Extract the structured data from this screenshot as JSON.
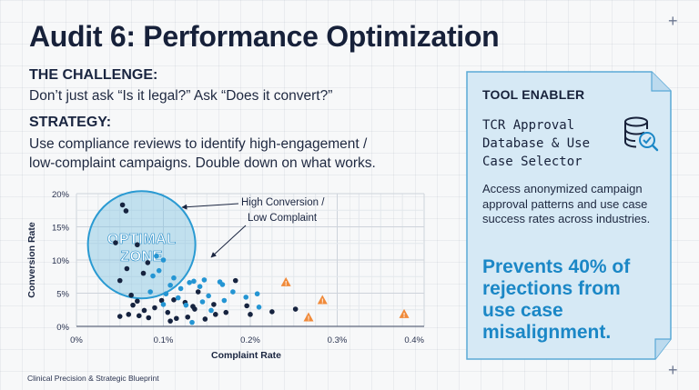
{
  "title": "Audit 6: Performance Optimization",
  "challenge": {
    "heading": "THE CHALLENGE:",
    "text": "Don’t just ask “Is it legal?” Ask “Does it convert?”"
  },
  "strategy": {
    "heading": "STRATEGY:",
    "line1": "Use compliance reviews to identify high-engagement /",
    "line2": "low-complaint campaigns. Double down on what works."
  },
  "tool": {
    "heading": "TOOL ENABLER",
    "name_line1": "TCR Approval",
    "name_line2": "Database & Use",
    "name_line3": "Case Selector",
    "icon": "database-check-icon",
    "desc": "Access anonymized campaign approval patterns and use case success rates across industries.",
    "big_line1": "Prevents 40% of",
    "big_line2": "rejections from",
    "big_line3": "use case",
    "big_line4": "misalignment."
  },
  "footer": "Clinical Precision & Strategic Blueprint",
  "colors": {
    "navy": "#16233f",
    "accent_blue": "#1b87c6",
    "panel_fill": "#d6e9f5",
    "panel_stroke": "#5aa9d6",
    "warning_orange": "#f08a3a"
  },
  "chart_data": {
    "type": "scatter",
    "xlabel": "Complaint Rate",
    "ylabel": "Conversion Rate",
    "xlim": [
      0,
      0.4
    ],
    "ylim": [
      0,
      20
    ],
    "x_ticks": [
      "0%",
      "0.1%",
      "0.2%",
      "0.3%",
      "0.4%"
    ],
    "y_ticks": [
      "0%",
      "5%",
      "10%",
      "15%",
      "20%"
    ],
    "grid": true,
    "annotations": {
      "optimal_line1": "OPTIMAL",
      "optimal_line2": "ZONE",
      "callout_line1": "High Conversion /",
      "callout_line2": "Low Complaint"
    },
    "series": [
      {
        "marker": "navy-dot",
        "points": [
          [
            0.053,
            18.3
          ],
          [
            0.057,
            17.4
          ],
          [
            0.045,
            12.6
          ],
          [
            0.07,
            12.3
          ],
          [
            0.058,
            8.7
          ],
          [
            0.077,
            8.0
          ],
          [
            0.082,
            9.6
          ],
          [
            0.05,
            6.9
          ],
          [
            0.063,
            4.7
          ],
          [
            0.07,
            3.8
          ],
          [
            0.065,
            3.2
          ],
          [
            0.078,
            2.4
          ],
          [
            0.072,
            1.6
          ],
          [
            0.083,
            1.3
          ],
          [
            0.09,
            2.8
          ],
          [
            0.098,
            3.9
          ],
          [
            0.105,
            2.1
          ],
          [
            0.115,
            1.2
          ],
          [
            0.125,
            3.6
          ],
          [
            0.128,
            1.4
          ],
          [
            0.136,
            2.6
          ],
          [
            0.14,
            5.2
          ],
          [
            0.148,
            1.1
          ],
          [
            0.158,
            3.3
          ],
          [
            0.16,
            1.8
          ],
          [
            0.172,
            2.1
          ],
          [
            0.183,
            6.9
          ],
          [
            0.196,
            3.1
          ],
          [
            0.2,
            1.8
          ],
          [
            0.05,
            1.5
          ],
          [
            0.06,
            1.8
          ],
          [
            0.108,
            0.8
          ],
          [
            0.225,
            2.2
          ],
          [
            0.252,
            2.6
          ],
          [
            0.134,
            3.0
          ],
          [
            0.112,
            4.0
          ]
        ]
      },
      {
        "marker": "blue-dot",
        "points": [
          [
            0.092,
            10.6
          ],
          [
            0.1,
            10.0
          ],
          [
            0.088,
            7.6
          ],
          [
            0.095,
            8.4
          ],
          [
            0.085,
            5.2
          ],
          [
            0.108,
            6.2
          ],
          [
            0.112,
            7.3
          ],
          [
            0.12,
            5.7
          ],
          [
            0.13,
            6.6
          ],
          [
            0.135,
            6.8
          ],
          [
            0.142,
            6.0
          ],
          [
            0.147,
            7.0
          ],
          [
            0.117,
            4.3
          ],
          [
            0.126,
            3.2
          ],
          [
            0.152,
            4.6
          ],
          [
            0.168,
            6.3
          ],
          [
            0.17,
            3.9
          ],
          [
            0.18,
            5.2
          ],
          [
            0.208,
            4.9
          ],
          [
            0.21,
            2.9
          ],
          [
            0.103,
            4.9
          ],
          [
            0.145,
            3.7
          ],
          [
            0.155,
            2.4
          ],
          [
            0.195,
            4.4
          ],
          [
            0.133,
            0.6
          ],
          [
            0.165,
            6.7
          ],
          [
            0.1,
            3.3
          ]
        ]
      },
      {
        "marker": "warning-triangle",
        "points": [
          [
            0.241,
            6.6
          ],
          [
            0.283,
            3.9
          ],
          [
            0.267,
            1.3
          ],
          [
            0.377,
            1.8
          ]
        ]
      }
    ]
  }
}
